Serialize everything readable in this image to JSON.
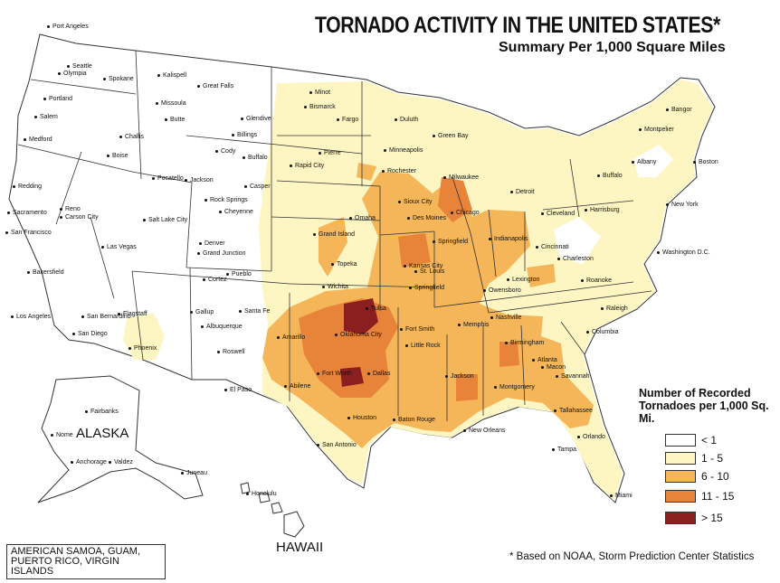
{
  "title": "TORNADO ACTIVITY IN THE UNITED STATES*",
  "subtitle": "Summary Per 1,000 Square Miles",
  "legend": {
    "title": "Number of Recorded Tornadoes per 1,000 Sq. Mi.",
    "items": [
      {
        "label": "< 1",
        "color": "#ffffff"
      },
      {
        "label": "1 - 5",
        "color": "#fdf6c3"
      },
      {
        "label": "6 - 10",
        "color": "#f5b65a"
      },
      {
        "label": "11 - 15",
        "color": "#e8843a"
      },
      {
        "label": "> 15",
        "color": "#8b1f1f"
      }
    ]
  },
  "labels": {
    "alaska": "ALASKA",
    "hawaii": "HAWAII",
    "territories": "AMERICAN SAMOA, GUAM, PUERTO RICO, VIRGIN ISLANDS",
    "footnote": "* Based on NOAA, Storm Prediction Center Statistics"
  },
  "cities": [
    "Port Angeles",
    "Seattle",
    "Olympia",
    "Spokane",
    "Kalispell",
    "Great Falls",
    "Minot",
    "Bismarck",
    "Fargo",
    "Duluth",
    "Bangor",
    "Portland",
    "Salem",
    "Missoula",
    "Butte",
    "Glendive",
    "Billings",
    "Medford",
    "Challis",
    "Boise",
    "Cody",
    "Buffalo",
    "Rapid City",
    "Pierre",
    "Minneapolis",
    "Green Bay",
    "Montpelier",
    "Albany",
    "Boston",
    "Redding",
    "Pocatello",
    "Jackson",
    "Casper",
    "Rochester",
    "Milwaukee",
    "Buffalo",
    "Detroit",
    "Sacramento",
    "Reno",
    "Carson City",
    "Rock Springs",
    "Cheyenne",
    "Sioux City",
    "Chicago",
    "Cleveland",
    "Harrisburg",
    "New York",
    "San Francisco",
    "Salt Lake City",
    "Grand Island",
    "Omaha",
    "Des Moines",
    "Denver",
    "Grand Junction",
    "Springfield",
    "Indianapolis",
    "Cincinnati",
    "Washington D.C.",
    "Las Vegas",
    "Bakersfield",
    "Pueblo",
    "Topeka",
    "Kansas City",
    "St. Louis",
    "Charleston",
    "Cortez",
    "Wichita",
    "Lexington",
    "Owensboro",
    "Roanoke",
    "Los Angeles",
    "San Bernardino",
    "Flagstaff",
    "Santa Fe",
    "Gallup",
    "Tulsa",
    "Springfield",
    "Nashville",
    "Raleigh",
    "San Diego",
    "Albuquerque",
    "Amarillo",
    "Oklahoma City",
    "Fort Smith",
    "Memphis",
    "Phoenix",
    "Roswell",
    "Little Rock",
    "Columbia",
    "Birmingham",
    "Atlanta",
    "Macon",
    "Fort Worth",
    "Dallas",
    "El Paso",
    "Abilene",
    "Jackson",
    "Savannah",
    "Montgomery",
    "Tallahassee",
    "Houston",
    "Baton Rouge",
    "New Orleans",
    "San Antonio",
    "Orlando",
    "Tampa",
    "Miami",
    "Fairbanks",
    "Nome",
    "Anchorage",
    "Valdez",
    "Juneau",
    "Honolulu"
  ]
}
